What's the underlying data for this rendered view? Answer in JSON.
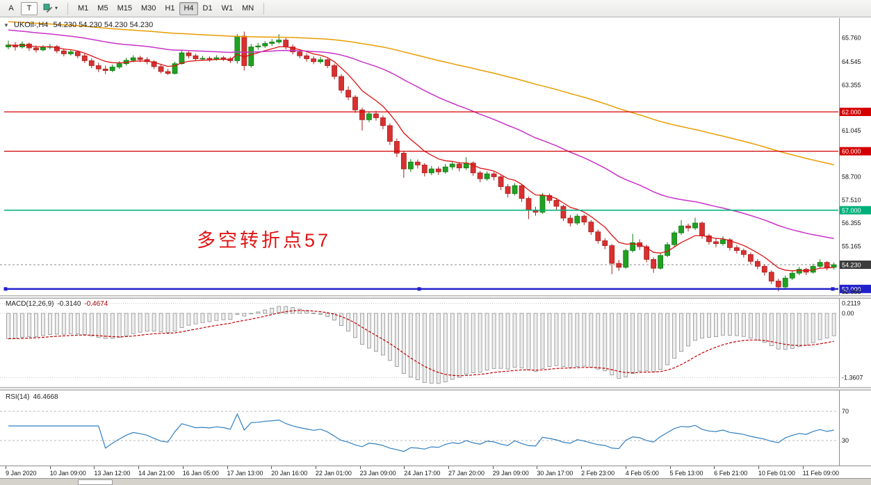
{
  "toolbar": {
    "left_buttons": [
      "A",
      "T"
    ],
    "timeframes": [
      "M1",
      "M5",
      "M15",
      "M30",
      "H1",
      "H4",
      "D1",
      "W1",
      "MN"
    ],
    "active_timeframe": "H4"
  },
  "icons": {
    "symbol_caret": "▼",
    "dropdown_caret": "▾"
  },
  "chart": {
    "symbol_label": "UKOil-,H4",
    "ohlc": "54.230 54.230 54.230 54.230",
    "annotation": "多空转折点57",
    "annotation_color": "#e01414"
  },
  "macd": {
    "label": "MACD(12,26,9)",
    "value1": "-0.3140",
    "value2": "-0.4674"
  },
  "rsi": {
    "label": "RSI(14)",
    "value": "46.4668"
  },
  "x_axis": {
    "labels": [
      "9 Jan 2020",
      "10 Jan 09:00",
      "13 Jan 12:00",
      "14 Jan 21:00",
      "16 Jan 05:00",
      "17 Jan 13:00",
      "20 Jan 16:00",
      "22 Jan 01:00",
      "23 Jan 09:00",
      "24 Jan 17:00",
      "27 Jan 20:00",
      "29 Jan 09:00",
      "30 Jan 17:00",
      "2 Feb 23:00",
      "4 Feb 05:00",
      "5 Feb 13:00",
      "6 Feb 21:00",
      "10 Feb 01:00",
      "11 Feb 09:00"
    ]
  },
  "chart_data": {
    "type": "candlestick",
    "symbol": "UKOil-",
    "timeframe": "H4",
    "current_price": 54.23,
    "colors": {
      "up": "#21a121",
      "up_stroke": "#0e7a12",
      "down": "#d93030",
      "down_stroke": "#a82020",
      "macd_bar_stroke": "#8e8e8e",
      "macd_bar_fill": "#ededed",
      "macd_signal": "#c00000",
      "rsi_line": "#2f7fc1",
      "current_price_line": "#8a8a8a"
    },
    "price_scale": [
      {
        "v": 65.76
      },
      {
        "v": 64.545
      },
      {
        "v": 63.355
      },
      {
        "v": 62.0,
        "badge": "#d40000"
      },
      {
        "v": 61.045
      },
      {
        "v": 60.0,
        "badge": "#d40000"
      },
      {
        "v": 58.7
      },
      {
        "v": 57.51
      },
      {
        "v": 57.0,
        "badge": "#00b07a"
      },
      {
        "v": 56.355
      },
      {
        "v": 55.165
      },
      {
        "v": 54.23,
        "badge": "#3c3c3c"
      },
      {
        "v": 53.0,
        "badge": "#2121cc"
      },
      {
        "v": 52.855
      }
    ],
    "hlines": [
      {
        "v": 62.0,
        "color": "#d40000",
        "width": 1.2
      },
      {
        "v": 60.0,
        "color": "#d40000",
        "width": 1.2
      },
      {
        "v": 57.0,
        "color": "#00b07a",
        "width": 1.6
      },
      {
        "v": 53.0,
        "color": "#2121cc",
        "width": 2.5,
        "handles": true
      }
    ],
    "candles": [
      [
        65.3,
        65.62,
        65.18,
        65.4
      ],
      [
        65.4,
        65.55,
        65.12,
        65.3
      ],
      [
        65.3,
        65.58,
        65.22,
        65.45
      ],
      [
        65.45,
        65.52,
        65.1,
        65.25
      ],
      [
        65.25,
        65.38,
        65.02,
        65.15
      ],
      [
        65.15,
        65.4,
        65.08,
        65.28
      ],
      [
        65.28,
        65.45,
        65.18,
        65.32
      ],
      [
        65.32,
        65.4,
        64.98,
        65.1
      ],
      [
        65.1,
        65.22,
        64.82,
        64.95
      ],
      [
        64.95,
        65.18,
        64.86,
        65.05
      ],
      [
        65.05,
        65.12,
        64.72,
        64.85
      ],
      [
        64.85,
        64.95,
        64.48,
        64.6
      ],
      [
        64.6,
        64.72,
        64.22,
        64.35
      ],
      [
        64.35,
        64.5,
        64.02,
        64.18
      ],
      [
        64.18,
        64.35,
        63.92,
        64.1
      ],
      [
        64.1,
        64.4,
        64.02,
        64.28
      ],
      [
        64.28,
        64.58,
        64.18,
        64.45
      ],
      [
        64.45,
        64.75,
        64.35,
        64.62
      ],
      [
        64.62,
        64.88,
        64.52,
        64.75
      ],
      [
        64.75,
        64.85,
        64.52,
        64.66
      ],
      [
        64.66,
        64.78,
        64.42,
        64.55
      ],
      [
        64.55,
        64.62,
        64.18,
        64.3
      ],
      [
        64.3,
        64.42,
        63.95,
        64.05
      ],
      [
        64.05,
        64.18,
        63.88,
        63.95
      ],
      [
        63.95,
        64.55,
        63.9,
        64.45
      ],
      [
        64.45,
        65.12,
        64.4,
        65.0
      ],
      [
        65.0,
        65.08,
        64.72,
        64.85
      ],
      [
        64.85,
        64.95,
        64.58,
        64.7
      ],
      [
        64.7,
        64.85,
        64.6,
        64.72
      ],
      [
        64.72,
        64.82,
        64.55,
        64.68
      ],
      [
        64.68,
        64.88,
        64.6,
        64.75
      ],
      [
        64.75,
        64.84,
        64.58,
        64.7
      ],
      [
        64.7,
        64.8,
        64.48,
        64.6
      ],
      [
        64.6,
        65.95,
        64.45,
        65.85
      ],
      [
        65.85,
        66.08,
        64.1,
        64.35
      ],
      [
        64.35,
        65.45,
        64.25,
        65.3
      ],
      [
        65.3,
        65.5,
        65.15,
        65.35
      ],
      [
        65.35,
        65.6,
        65.25,
        65.48
      ],
      [
        65.48,
        65.7,
        65.35,
        65.55
      ],
      [
        65.55,
        65.95,
        65.45,
        65.65
      ],
      [
        65.65,
        65.75,
        65.18,
        65.3
      ],
      [
        65.3,
        65.42,
        64.92,
        65.05
      ],
      [
        65.05,
        65.15,
        64.72,
        64.85
      ],
      [
        64.85,
        64.98,
        64.55,
        64.7
      ],
      [
        64.7,
        64.82,
        64.42,
        64.55
      ],
      [
        64.55,
        64.8,
        64.45,
        64.65
      ],
      [
        64.65,
        64.72,
        64.22,
        64.35
      ],
      [
        64.35,
        64.45,
        63.65,
        63.8
      ],
      [
        63.8,
        63.92,
        62.95,
        63.1
      ],
      [
        63.1,
        63.3,
        62.6,
        62.75
      ],
      [
        62.75,
        62.85,
        61.95,
        62.1
      ],
      [
        62.1,
        62.22,
        61.05,
        61.6
      ],
      [
        61.6,
        62.02,
        61.48,
        61.9
      ],
      [
        61.9,
        62.05,
        61.55,
        61.7
      ],
      [
        61.7,
        61.82,
        61.12,
        61.3
      ],
      [
        61.3,
        61.42,
        60.32,
        60.5
      ],
      [
        60.5,
        60.65,
        59.7,
        59.9
      ],
      [
        59.9,
        60.02,
        58.65,
        59.1
      ],
      [
        59.1,
        59.6,
        58.95,
        59.45
      ],
      [
        59.45,
        59.58,
        59.12,
        59.3
      ],
      [
        59.3,
        59.4,
        58.72,
        58.9
      ],
      [
        58.9,
        59.25,
        58.78,
        59.1
      ],
      [
        59.1,
        59.22,
        58.8,
        58.95
      ],
      [
        58.95,
        59.35,
        58.85,
        59.2
      ],
      [
        59.2,
        59.5,
        59.05,
        59.35
      ],
      [
        59.35,
        59.45,
        58.98,
        59.15
      ],
      [
        59.15,
        59.7,
        59.05,
        59.4
      ],
      [
        59.4,
        59.48,
        58.75,
        58.9
      ],
      [
        58.9,
        59.0,
        58.42,
        58.6
      ],
      [
        58.6,
        58.98,
        58.5,
        58.85
      ],
      [
        58.85,
        58.95,
        58.52,
        58.7
      ],
      [
        58.7,
        58.78,
        58.02,
        58.2
      ],
      [
        58.2,
        58.32,
        57.65,
        57.85
      ],
      [
        57.85,
        58.38,
        57.75,
        58.25
      ],
      [
        58.25,
        58.32,
        57.42,
        57.6
      ],
      [
        57.6,
        57.7,
        56.55,
        57.0
      ],
      [
        57.0,
        57.18,
        56.72,
        56.9
      ],
      [
        56.9,
        57.88,
        56.82,
        57.75
      ],
      [
        57.75,
        57.85,
        57.35,
        57.5
      ],
      [
        57.5,
        57.62,
        57.02,
        57.2
      ],
      [
        57.2,
        57.28,
        56.45,
        56.6
      ],
      [
        56.6,
        56.75,
        56.18,
        56.35
      ],
      [
        56.35,
        56.82,
        56.25,
        56.7
      ],
      [
        56.7,
        56.78,
        56.25,
        56.4
      ],
      [
        56.4,
        56.5,
        55.75,
        55.9
      ],
      [
        55.9,
        56.02,
        55.3,
        55.45
      ],
      [
        55.45,
        55.58,
        55.02,
        55.2
      ],
      [
        55.2,
        55.28,
        53.75,
        54.3
      ],
      [
        54.3,
        54.48,
        53.92,
        54.1
      ],
      [
        54.1,
        55.05,
        54.02,
        54.95
      ],
      [
        54.95,
        55.8,
        54.85,
        55.35
      ],
      [
        55.35,
        55.52,
        54.98,
        55.15
      ],
      [
        55.15,
        55.25,
        54.35,
        54.5
      ],
      [
        54.5,
        54.6,
        53.82,
        54.05
      ],
      [
        54.05,
        54.82,
        53.98,
        54.7
      ],
      [
        54.7,
        55.38,
        54.62,
        55.25
      ],
      [
        55.25,
        55.95,
        55.15,
        55.85
      ],
      [
        55.85,
        56.5,
        55.75,
        56.2
      ],
      [
        56.2,
        56.32,
        55.92,
        56.1
      ],
      [
        56.1,
        56.62,
        56.0,
        56.35
      ],
      [
        56.35,
        56.42,
        55.55,
        55.7
      ],
      [
        55.7,
        55.8,
        55.25,
        55.4
      ],
      [
        55.4,
        55.55,
        55.12,
        55.3
      ],
      [
        55.3,
        55.68,
        55.2,
        55.5
      ],
      [
        55.5,
        55.58,
        54.95,
        55.1
      ],
      [
        55.1,
        55.22,
        54.8,
        54.95
      ],
      [
        54.95,
        55.05,
        54.6,
        54.75
      ],
      [
        54.75,
        54.85,
        54.25,
        54.4
      ],
      [
        54.4,
        54.52,
        54.0,
        54.15
      ],
      [
        54.15,
        54.25,
        53.68,
        53.85
      ],
      [
        53.85,
        53.95,
        53.25,
        53.4
      ],
      [
        53.4,
        53.52,
        52.88,
        53.1
      ],
      [
        53.1,
        53.68,
        53.02,
        53.55
      ],
      [
        53.55,
        53.92,
        53.45,
        53.8
      ],
      [
        53.8,
        54.12,
        53.7,
        54.0
      ],
      [
        54.0,
        54.08,
        53.7,
        53.85
      ],
      [
        53.85,
        54.28,
        53.78,
        54.15
      ],
      [
        54.15,
        54.5,
        54.05,
        54.35
      ],
      [
        54.35,
        54.42,
        53.95,
        54.1
      ],
      [
        54.1,
        54.35,
        53.98,
        54.23
      ]
    ],
    "moving_averages": [
      {
        "name": "ma-fast",
        "period": 8,
        "seed": 65.4,
        "color": "#dd1111",
        "width": 1.3
      },
      {
        "name": "ma-mid",
        "period": 45,
        "seed": 66.2,
        "color": "#c832c8",
        "width": 1.5
      },
      {
        "name": "ma-slow",
        "period": 130,
        "seed": 66.6,
        "color": "#e89c00",
        "width": 1.5
      }
    ],
    "macd": {
      "fast": 12,
      "slow": 26,
      "signal": 9,
      "seed_fast_offset": 0.35,
      "seed_slow_offset": 0.9,
      "value": -0.314,
      "signal_value": -0.4674,
      "axis": [
        {
          "v": 0.2119,
          "label": "0.2119"
        },
        {
          "v": 0,
          "label": "0.00"
        },
        {
          "v": -1.3607,
          "label": "-1.3607"
        }
      ]
    },
    "rsi": {
      "period": 14,
      "value": 46.4668,
      "levels": [
        {
          "v": 70,
          "label": "70"
        },
        {
          "v": 30,
          "label": "30"
        }
      ]
    }
  }
}
